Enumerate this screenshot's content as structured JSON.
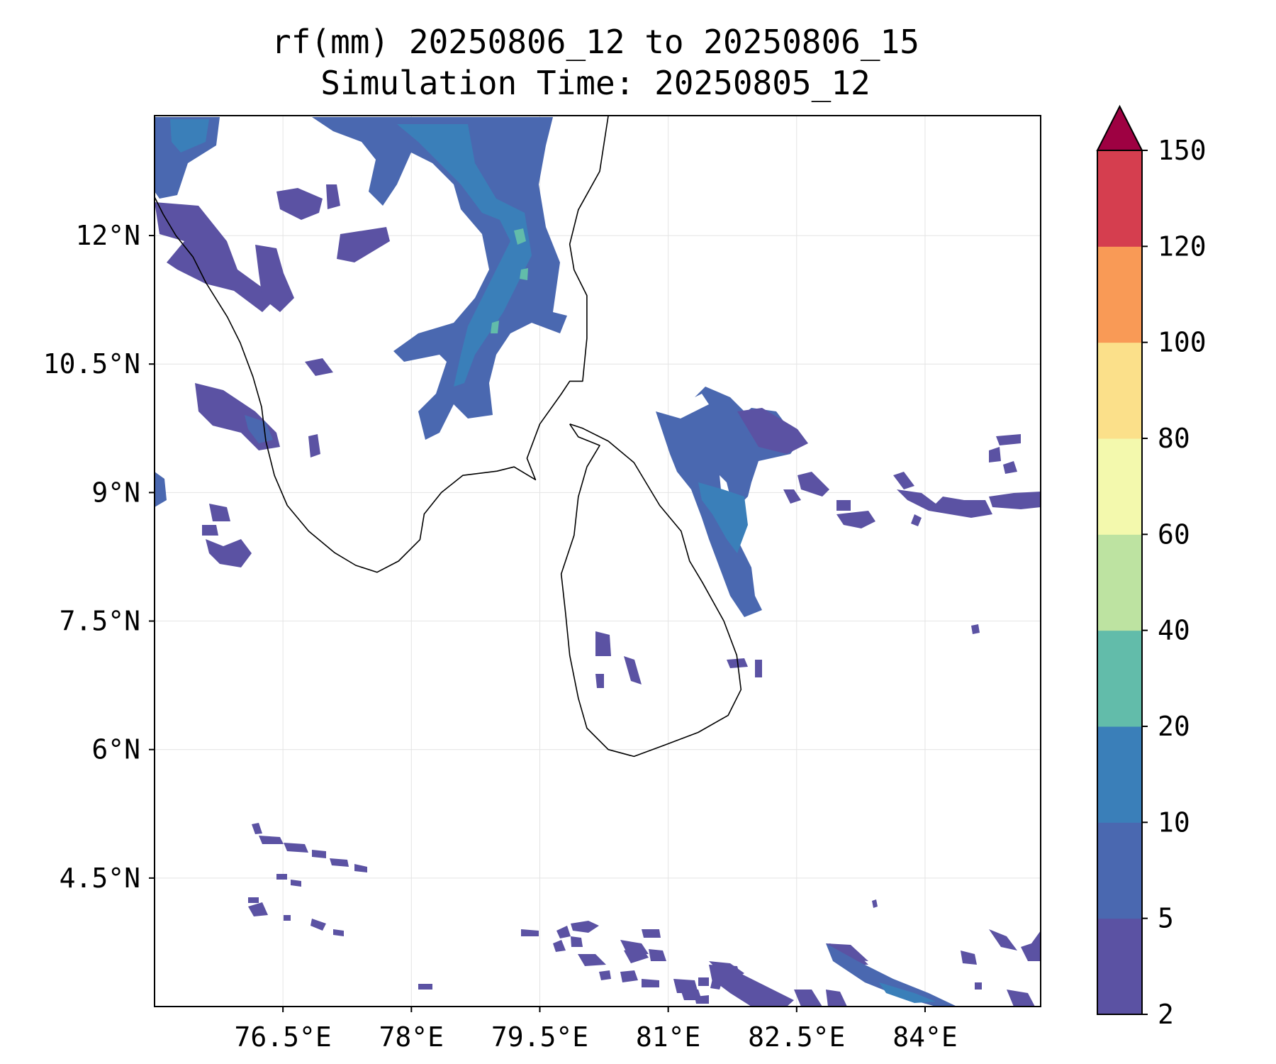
{
  "title": {
    "line1": "rf(mm) 20250806_12 to 20250806_15",
    "line2": "Simulation Time: 20250805_12"
  },
  "map": {
    "lon_range": [
      75.0,
      85.35
    ],
    "lat_range": [
      3.0,
      13.4
    ],
    "x_ticks": [
      {
        "value": 76.5,
        "label": "76.5°E"
      },
      {
        "value": 78.0,
        "label": "78°E"
      },
      {
        "value": 79.5,
        "label": "79.5°E"
      },
      {
        "value": 81.0,
        "label": "81°E"
      },
      {
        "value": 82.5,
        "label": "82.5°E"
      },
      {
        "value": 84.0,
        "label": "84°E"
      }
    ],
    "y_ticks": [
      {
        "value": 12.0,
        "label": "12°N"
      },
      {
        "value": 10.5,
        "label": "10.5°N"
      },
      {
        "value": 9.0,
        "label": "9°N"
      },
      {
        "value": 7.5,
        "label": "7.5°N"
      },
      {
        "value": 6.0,
        "label": "6°N"
      },
      {
        "value": 4.5,
        "label": "4.5°N"
      }
    ],
    "gridlines": true
  },
  "colorbar": {
    "levels": [
      "2",
      "5",
      "10",
      "20",
      "40",
      "60",
      "80",
      "100",
      "120",
      "150"
    ],
    "colors": [
      "#5b52a3",
      "#4a68b0",
      "#3a7fb9",
      "#62bcaa",
      "#bde3a1",
      "#f3f9ad",
      "#fbe08a",
      "#f99a56",
      "#d53e4f"
    ],
    "extend_color": "#9e0142"
  },
  "coastlines": {
    "india": [
      [
        75.0,
        12.45
      ],
      [
        75.1,
        12.25
      ],
      [
        75.25,
        12.0
      ],
      [
        75.45,
        11.75
      ],
      [
        75.6,
        11.45
      ],
      [
        75.85,
        11.05
      ],
      [
        76.0,
        10.75
      ],
      [
        76.15,
        10.35
      ],
      [
        76.25,
        10.0
      ],
      [
        76.3,
        9.6
      ],
      [
        76.4,
        9.2
      ],
      [
        76.55,
        8.85
      ],
      [
        76.8,
        8.55
      ],
      [
        77.1,
        8.3
      ],
      [
        77.35,
        8.15
      ],
      [
        77.6,
        8.07
      ],
      [
        77.85,
        8.2
      ],
      [
        78.1,
        8.45
      ],
      [
        78.15,
        8.75
      ],
      [
        78.35,
        9.0
      ],
      [
        78.6,
        9.2
      ],
      [
        79.0,
        9.25
      ],
      [
        79.2,
        9.3
      ],
      [
        79.45,
        9.15
      ],
      [
        79.35,
        9.4
      ],
      [
        79.5,
        9.8
      ],
      [
        79.75,
        10.15
      ],
      [
        79.85,
        10.3
      ],
      [
        80.0,
        10.3
      ],
      [
        80.05,
        10.8
      ],
      [
        80.05,
        11.3
      ],
      [
        79.9,
        11.6
      ],
      [
        79.85,
        11.9
      ],
      [
        79.95,
        12.3
      ],
      [
        80.2,
        12.75
      ],
      [
        80.3,
        13.4
      ]
    ],
    "sri_lanka": [
      [
        79.85,
        9.8
      ],
      [
        80.0,
        9.75
      ],
      [
        80.3,
        9.6
      ],
      [
        80.6,
        9.35
      ],
      [
        80.9,
        8.85
      ],
      [
        81.15,
        8.55
      ],
      [
        81.25,
        8.2
      ],
      [
        81.4,
        7.95
      ],
      [
        81.65,
        7.5
      ],
      [
        81.8,
        7.1
      ],
      [
        81.85,
        6.7
      ],
      [
        81.7,
        6.4
      ],
      [
        81.35,
        6.2
      ],
      [
        80.95,
        6.05
      ],
      [
        80.6,
        5.92
      ],
      [
        80.3,
        6.0
      ],
      [
        80.05,
        6.25
      ],
      [
        79.95,
        6.6
      ],
      [
        79.85,
        7.1
      ],
      [
        79.8,
        7.6
      ],
      [
        79.75,
        8.05
      ],
      [
        79.9,
        8.5
      ],
      [
        79.95,
        8.95
      ],
      [
        80.05,
        9.3
      ],
      [
        80.2,
        9.55
      ],
      [
        79.95,
        9.65
      ],
      [
        79.85,
        9.8
      ]
    ]
  }
}
